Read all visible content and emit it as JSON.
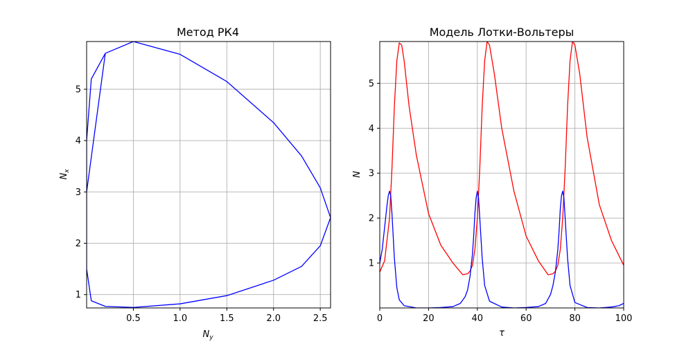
{
  "chart_data": [
    {
      "type": "line",
      "title": "Метод РК4",
      "xlabel_main": "N",
      "xlabel_sub": "y",
      "ylabel_main": "N",
      "ylabel_sub": "x",
      "xlim": [
        0.0,
        2.61
      ],
      "ylim": [
        0.74,
        5.93
      ],
      "grid": true,
      "xticks": [
        0.5,
        1.0,
        1.5,
        2.0,
        2.5
      ],
      "xticklabels": [
        "0.5",
        "1.0",
        "1.5",
        "2.0",
        "2.5"
      ],
      "yticks": [
        1,
        2,
        3,
        4,
        5
      ],
      "yticklabels": [
        "1",
        "2",
        "3",
        "4",
        "5"
      ],
      "series": [
        {
          "color": "#0000ff",
          "x": [
            0.0,
            0.2,
            0.5,
            1.0,
            1.5,
            2.0,
            2.3,
            2.5,
            2.61,
            2.5,
            2.3,
            2.0,
            1.5,
            1.0,
            0.5,
            0.2,
            0.05,
            0.0,
            0.0,
            0.05,
            0.2,
            0.5
          ],
          "y": [
            3.0,
            5.7,
            5.93,
            5.68,
            5.15,
            4.35,
            3.7,
            3.08,
            2.5,
            1.95,
            1.55,
            1.28,
            0.98,
            0.82,
            0.75,
            0.77,
            0.88,
            1.5,
            4.0,
            5.2,
            5.7,
            5.93
          ]
        }
      ]
    },
    {
      "type": "line",
      "title": "Модель Лотки-Вольтеры",
      "xlabel": "τ",
      "ylabel": "N",
      "xlim": [
        0,
        100
      ],
      "ylim": [
        0.0,
        5.93
      ],
      "grid": true,
      "xticks": [
        0,
        20,
        40,
        60,
        80,
        100
      ],
      "xticklabels": [
        "0",
        "20",
        "40",
        "60",
        "80",
        "100"
      ],
      "yticks": [
        1,
        2,
        3,
        4,
        5
      ],
      "yticklabels": [
        "1",
        "2",
        "3",
        "4",
        "5"
      ],
      "series": [
        {
          "color": "#ff0000",
          "x": [
            0,
            2,
            4,
            5,
            6,
            7,
            8,
            9,
            10,
            12,
            15,
            20,
            25,
            30,
            34,
            36,
            37,
            38,
            39,
            40,
            41,
            42,
            43,
            44,
            45,
            47,
            50,
            55,
            60,
            65,
            69,
            71,
            72,
            73,
            74,
            75,
            76,
            77,
            78,
            79,
            80,
            82,
            85,
            90,
            95,
            100
          ],
          "y": [
            0.8,
            1.05,
            2.0,
            3.1,
            4.5,
            5.5,
            5.9,
            5.85,
            5.5,
            4.5,
            3.4,
            2.1,
            1.4,
            1.0,
            0.74,
            0.76,
            0.82,
            0.95,
            1.3,
            2.0,
            3.1,
            4.5,
            5.5,
            5.93,
            5.85,
            5.2,
            4.0,
            2.6,
            1.6,
            1.05,
            0.74,
            0.76,
            0.82,
            0.95,
            1.3,
            2.0,
            3.1,
            4.5,
            5.5,
            5.93,
            5.85,
            5.2,
            3.8,
            2.3,
            1.5,
            0.95
          ]
        },
        {
          "color": "#0000ff",
          "x": [
            0,
            1,
            2,
            3,
            3.5,
            4,
            4.5,
            5,
            5.5,
            6,
            7,
            8,
            10,
            15,
            20,
            25,
            30,
            33,
            35,
            36,
            37,
            38,
            38.5,
            39,
            39.5,
            40,
            40.5,
            41,
            42,
            43,
            45,
            50,
            55,
            60,
            65,
            68,
            70,
            71,
            72,
            73,
            73.5,
            74,
            74.5,
            75,
            75.5,
            76,
            77,
            78,
            80,
            85,
            90,
            95,
            98,
            100
          ],
          "y": [
            1.0,
            1.3,
            1.8,
            2.3,
            2.5,
            2.6,
            2.5,
            2.1,
            1.6,
            1.1,
            0.45,
            0.18,
            0.05,
            0.0,
            0.0,
            0.01,
            0.03,
            0.1,
            0.25,
            0.4,
            0.7,
            1.2,
            1.6,
            2.1,
            2.45,
            2.6,
            2.45,
            2.0,
            1.1,
            0.5,
            0.15,
            0.02,
            0.0,
            0.01,
            0.03,
            0.1,
            0.3,
            0.5,
            0.8,
            1.3,
            1.7,
            2.2,
            2.5,
            2.6,
            2.45,
            2.0,
            1.1,
            0.5,
            0.12,
            0.01,
            0.0,
            0.02,
            0.05,
            0.1
          ]
        }
      ]
    }
  ]
}
